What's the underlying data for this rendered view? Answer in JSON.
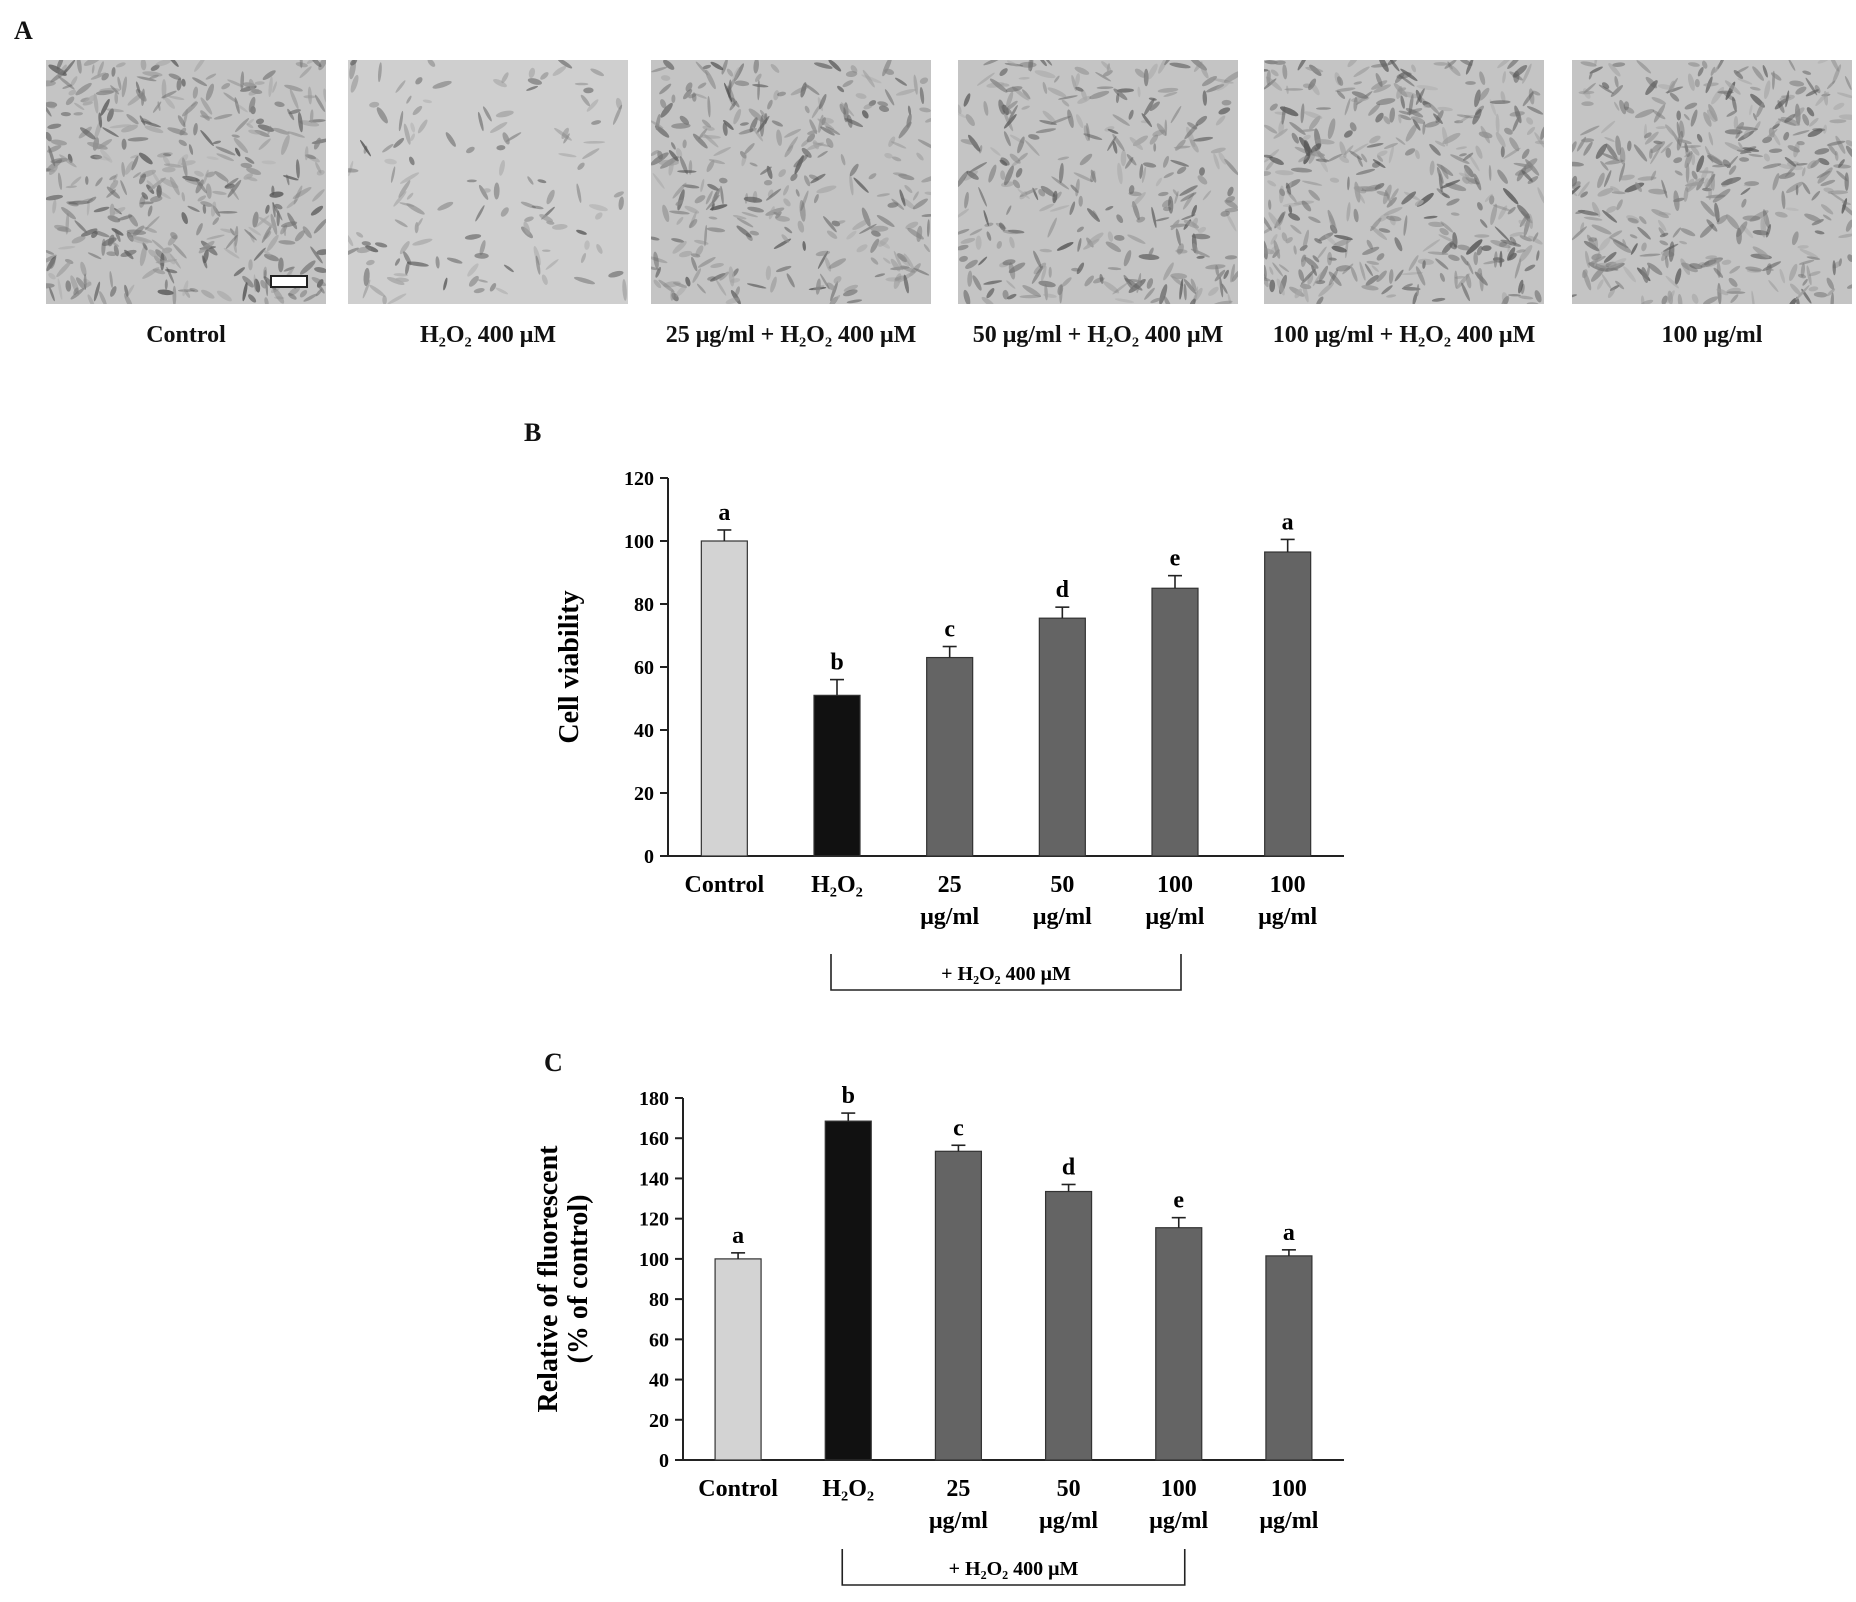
{
  "panels": {
    "a": "A",
    "b": "B",
    "c": "C"
  },
  "micrographs": [
    {
      "caption": "Control",
      "hue": "dense"
    },
    {
      "caption": "H₂O₂ 400 μM",
      "hue": "sparse"
    },
    {
      "caption": "25 μg/ml + H₂O₂ 400 μM",
      "hue": "medium"
    },
    {
      "caption": "50 μg/ml + H₂O₂ 400 μM",
      "hue": "medium"
    },
    {
      "caption": "100 μg/ml + H₂O₂ 400 μM",
      "hue": "dense"
    },
    {
      "caption": "100 μg/ml",
      "hue": "dense"
    }
  ],
  "colors": {
    "control": "#d3d3d3",
    "h2o2": "#111111",
    "treated": "#646464"
  },
  "chart_data": [
    {
      "type": "bar",
      "panel": "B",
      "ylabel": "Cell viability",
      "ylim": [
        0,
        120
      ],
      "yticks": [
        0,
        20,
        40,
        60,
        80,
        100,
        120
      ],
      "categories": [
        [
          "Control"
        ],
        [
          "H₂O₂"
        ],
        [
          "25",
          "μg/ml"
        ],
        [
          "50",
          "μg/ml"
        ],
        [
          "100",
          "μg/ml"
        ],
        [
          "100",
          "μg/ml"
        ]
      ],
      "values": [
        100,
        51,
        63,
        75.5,
        85,
        96.5
      ],
      "errors": [
        3.5,
        5,
        3.5,
        3.5,
        4,
        4
      ],
      "letters": [
        "a",
        "b",
        "c",
        "d",
        "e",
        "a"
      ],
      "bar_colors": [
        "control",
        "h2o2",
        "treated",
        "treated",
        "treated",
        "treated"
      ],
      "bracket": {
        "label": "+ H₂O₂ 400 μM",
        "from": 1,
        "to": 4
      }
    },
    {
      "type": "bar",
      "panel": "C",
      "ylabel": [
        "Relative of fluorescent",
        "(% of control)"
      ],
      "ylim": [
        0,
        180
      ],
      "yticks": [
        0,
        20,
        40,
        60,
        80,
        100,
        120,
        140,
        160,
        180
      ],
      "categories": [
        [
          "Control"
        ],
        [
          "H₂O₂"
        ],
        [
          "25",
          "μg/ml"
        ],
        [
          "50",
          "μg/ml"
        ],
        [
          "100",
          "μg/ml"
        ],
        [
          "100",
          "μg/ml"
        ]
      ],
      "values": [
        100,
        168.5,
        153.5,
        133.5,
        115.5,
        101.5
      ],
      "errors": [
        3,
        4,
        3,
        3.5,
        5,
        3
      ],
      "letters": [
        "a",
        "b",
        "c",
        "d",
        "e",
        "a"
      ],
      "bar_colors": [
        "control",
        "h2o2",
        "treated",
        "treated",
        "treated",
        "treated"
      ],
      "bracket": {
        "label": "+ H₂O₂ 400 μM",
        "from": 1,
        "to": 4
      }
    }
  ]
}
